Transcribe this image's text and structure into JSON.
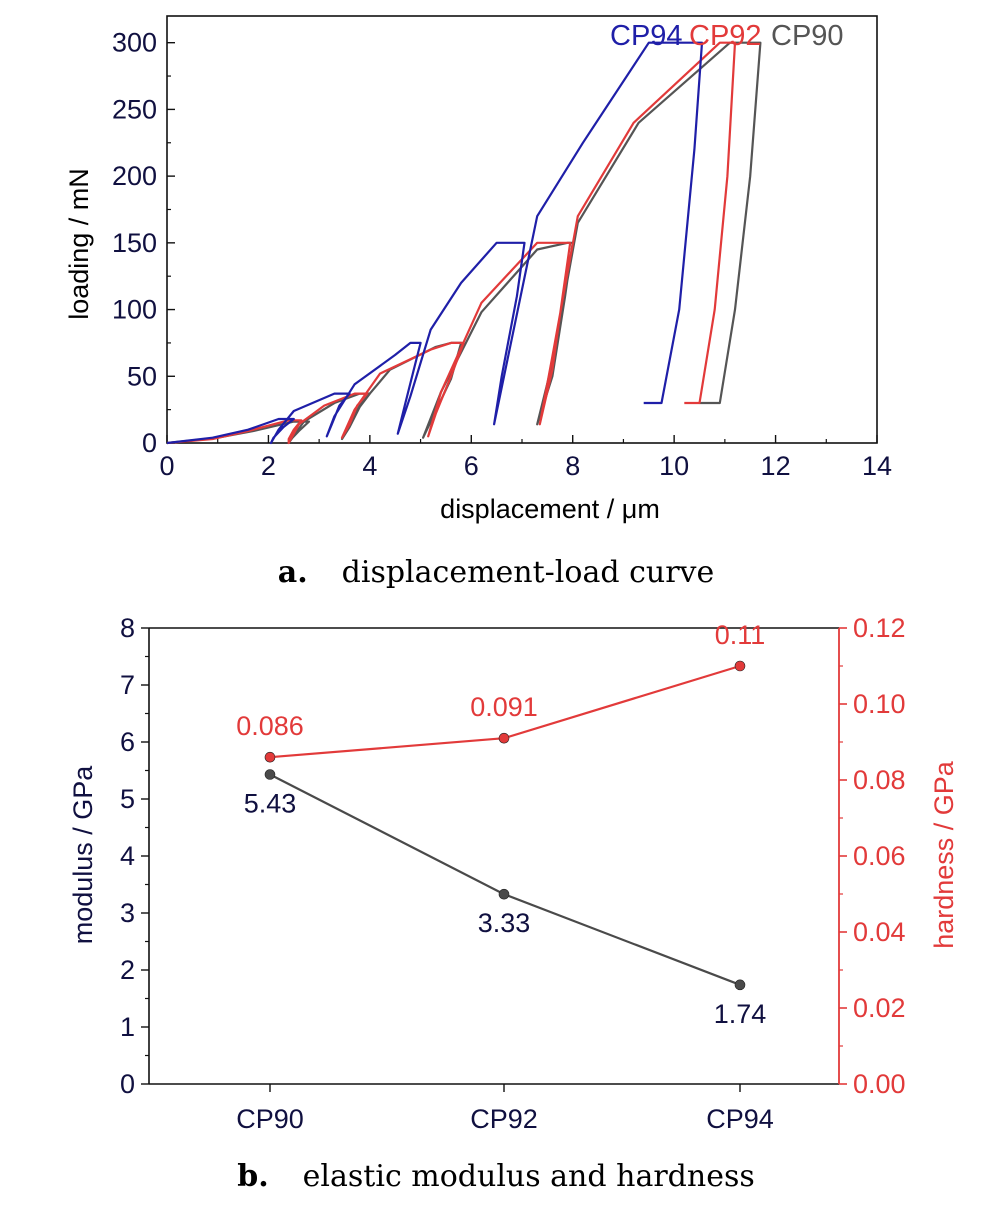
{
  "chart_data": [
    {
      "type": "line",
      "caption_letter": "a.",
      "caption": "displacement-load curve",
      "xlabel": "displacement / μm",
      "ylabel": "loading / mN",
      "xlim": [
        0,
        14
      ],
      "ylim": [
        0,
        320
      ],
      "xticks": [
        "0",
        "2",
        "4",
        "6",
        "8",
        "10",
        "12",
        "14"
      ],
      "yticks": [
        "0",
        "50",
        "100",
        "150",
        "200",
        "250",
        "300"
      ],
      "grid": false,
      "legend_placement": "top-right",
      "series": [
        {
          "name": "CP94",
          "color": "#1f1fa8",
          "points": [
            [
              0,
              0
            ],
            [
              0.9,
              4
            ],
            [
              1.6,
              10
            ],
            [
              2.2,
              18
            ],
            [
              2.5,
              18
            ],
            [
              2.3,
              12
            ],
            [
              2.1,
              4
            ],
            [
              2.05,
              0
            ],
            [
              2.2,
              10
            ],
            [
              2.5,
              24
            ],
            [
              3.3,
              37
            ],
            [
              3.6,
              37
            ],
            [
              3.4,
              28
            ],
            [
              3.25,
              14
            ],
            [
              3.15,
              5
            ],
            [
              3.3,
              20
            ],
            [
              3.7,
              44
            ],
            [
              4.5,
              66
            ],
            [
              4.8,
              75
            ],
            [
              5.0,
              75
            ],
            [
              4.9,
              60
            ],
            [
              4.7,
              30
            ],
            [
              4.55,
              7
            ],
            [
              4.8,
              35
            ],
            [
              5.2,
              85
            ],
            [
              5.8,
              120
            ],
            [
              6.5,
              150
            ],
            [
              7.05,
              150
            ],
            [
              6.9,
              110
            ],
            [
              6.6,
              50
            ],
            [
              6.45,
              14
            ],
            [
              6.7,
              60
            ],
            [
              7.3,
              170
            ],
            [
              8.2,
              225
            ],
            [
              9.5,
              300
            ],
            [
              10.55,
              300
            ],
            [
              10.4,
              220
            ],
            [
              10.1,
              100
            ],
            [
              9.75,
              30
            ],
            [
              9.4,
              30
            ]
          ]
        },
        {
          "name": "CP92",
          "color": "#e23a3a",
          "points": [
            [
              0,
              0
            ],
            [
              0.9,
              3
            ],
            [
              1.6,
              9
            ],
            [
              2.4,
              17
            ],
            [
              2.65,
              17
            ],
            [
              2.5,
              10
            ],
            [
              2.4,
              3
            ],
            [
              2.4,
              0
            ],
            [
              2.6,
              14
            ],
            [
              3.1,
              28
            ],
            [
              3.7,
              37
            ],
            [
              3.95,
              37
            ],
            [
              3.75,
              28
            ],
            [
              3.6,
              14
            ],
            [
              3.45,
              4
            ],
            [
              3.7,
              25
            ],
            [
              4.2,
              52
            ],
            [
              5.2,
              70
            ],
            [
              5.6,
              75
            ],
            [
              5.85,
              75
            ],
            [
              5.6,
              50
            ],
            [
              5.3,
              22
            ],
            [
              5.15,
              5
            ],
            [
              5.4,
              38
            ],
            [
              6.2,
              105
            ],
            [
              7.3,
              150
            ],
            [
              7.95,
              150
            ],
            [
              7.8,
              110
            ],
            [
              7.6,
              55
            ],
            [
              7.35,
              14
            ],
            [
              7.6,
              65
            ],
            [
              8.1,
              170
            ],
            [
              9.2,
              240
            ],
            [
              10.9,
              300
            ],
            [
              11.2,
              300
            ],
            [
              11.05,
              200
            ],
            [
              10.8,
              100
            ],
            [
              10.5,
              30
            ],
            [
              10.2,
              30
            ]
          ]
        },
        {
          "name": "CP90",
          "color": "#555555",
          "points": [
            [
              0,
              0
            ],
            [
              1.0,
              4
            ],
            [
              1.7,
              9
            ],
            [
              2.5,
              16
            ],
            [
              2.8,
              16
            ],
            [
              2.6,
              9
            ],
            [
              2.45,
              3
            ],
            [
              2.4,
              0
            ],
            [
              2.7,
              16
            ],
            [
              3.3,
              30
            ],
            [
              3.8,
              37
            ],
            [
              4.0,
              37
            ],
            [
              3.8,
              27
            ],
            [
              3.6,
              12
            ],
            [
              3.45,
              3
            ],
            [
              3.8,
              28
            ],
            [
              4.4,
              55
            ],
            [
              5.3,
              72
            ],
            [
              5.6,
              75
            ],
            [
              5.8,
              75
            ],
            [
              5.6,
              48
            ],
            [
              5.25,
              20
            ],
            [
              5.05,
              4
            ],
            [
              5.4,
              38
            ],
            [
              6.2,
              98
            ],
            [
              7.3,
              145
            ],
            [
              7.9,
              150
            ],
            [
              8.0,
              150
            ],
            [
              7.85,
              110
            ],
            [
              7.6,
              50
            ],
            [
              7.3,
              14
            ],
            [
              7.6,
              60
            ],
            [
              8.1,
              165
            ],
            [
              9.3,
              240
            ],
            [
              11.1,
              300
            ],
            [
              11.7,
              300
            ],
            [
              11.5,
              200
            ],
            [
              11.2,
              100
            ],
            [
              10.9,
              30
            ],
            [
              10.5,
              30
            ]
          ]
        }
      ]
    },
    {
      "type": "line",
      "caption_letter": "b.",
      "caption": "elastic modulus and hardness",
      "categories": [
        "CP90",
        "CP92",
        "CP94"
      ],
      "ylabel": "modulus / GPa",
      "y2label": "hardness / GPa",
      "ylim": [
        0,
        8
      ],
      "y2lim": [
        0,
        0.12
      ],
      "yticks": [
        "0",
        "1",
        "2",
        "3",
        "4",
        "5",
        "6",
        "7",
        "8"
      ],
      "y2ticks": [
        "0.00",
        "0.02",
        "0.04",
        "0.06",
        "0.08",
        "0.10",
        "0.12"
      ],
      "grid": false,
      "series": [
        {
          "name": "modulus",
          "axis": "left",
          "color": "#4a4a4a",
          "values": [
            5.43,
            3.33,
            1.74
          ],
          "labels": [
            "5.43",
            "3.33",
            "1.74"
          ]
        },
        {
          "name": "hardness",
          "axis": "right",
          "color": "#e23a3a",
          "values": [
            0.086,
            0.091,
            0.11
          ],
          "labels": [
            "0.086",
            "0.091",
            "0.11"
          ]
        }
      ]
    }
  ]
}
